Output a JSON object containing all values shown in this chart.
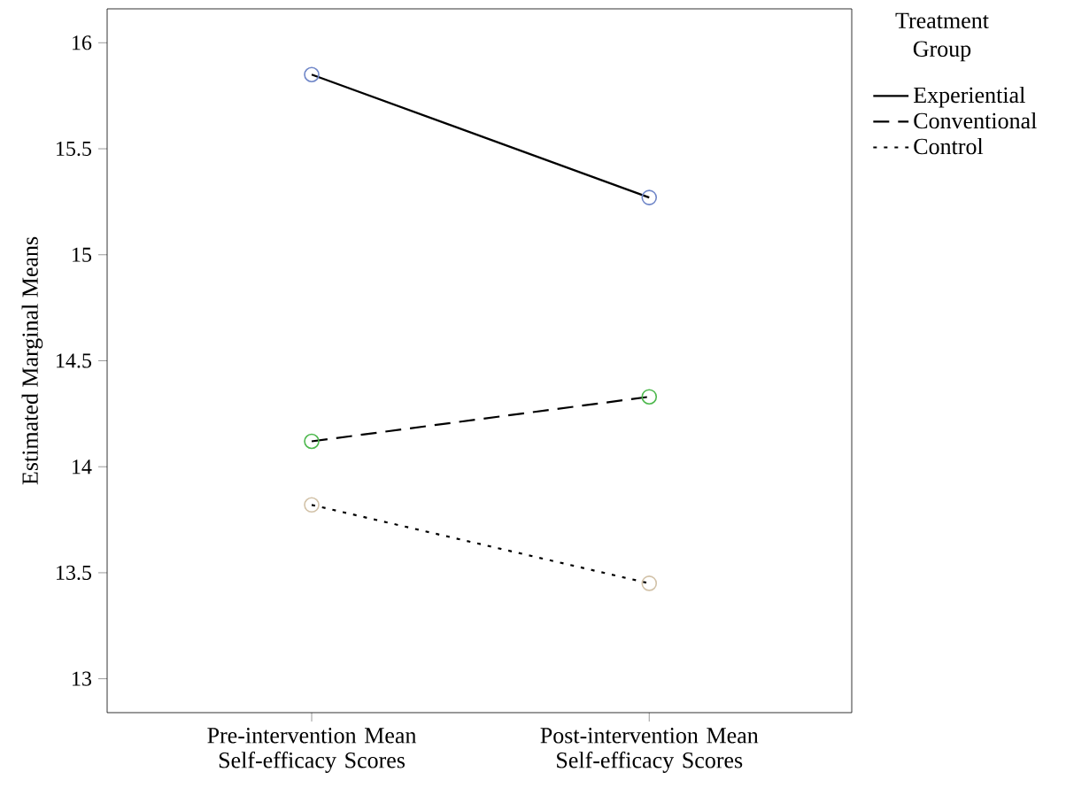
{
  "chart_data": {
    "type": "line",
    "ylabel": "Estimated Marginal Means",
    "legend_title": "Treatment Group",
    "legend": "top right",
    "categories": [
      "Pre-intervention Mean Self-efficacy Scores",
      "Post-intervention Mean Self-efficacy Scores"
    ],
    "ylim": [
      12.84,
      16.16
    ],
    "yticks": [
      13,
      13.5,
      14,
      14.5,
      15,
      15.5,
      16
    ],
    "marker": "circle",
    "grid": false,
    "series": [
      {
        "name": "Experiential",
        "color": "#6f86c8",
        "line_style": "solid",
        "values": [
          15.85,
          15.27
        ]
      },
      {
        "name": "Conventional",
        "color": "#4db84d",
        "line_style": "dashed",
        "values": [
          14.12,
          14.33
        ]
      },
      {
        "name": "Control",
        "color": "#d2c2a8",
        "line_style": "dotted",
        "values": [
          13.82,
          13.45
        ]
      }
    ]
  }
}
